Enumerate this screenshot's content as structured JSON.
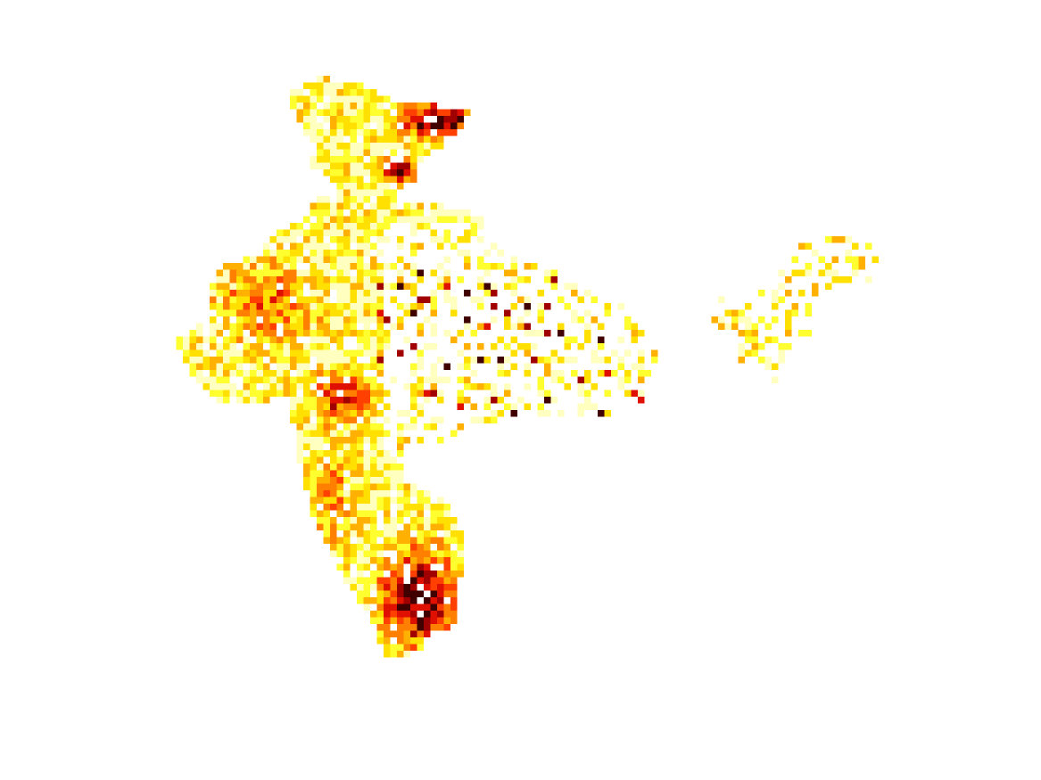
{
  "map": {
    "type": "gridded-heatmap",
    "region": "India",
    "axes_visible": false,
    "legend_visible": false,
    "title": "",
    "palette": [
      "#ffffc0",
      "#ffff30",
      "#ffe000",
      "#ffb000",
      "#ff8000",
      "#ff4000",
      "#e01000",
      "#a00000",
      "#400000"
    ],
    "background": "#ffffff"
  }
}
